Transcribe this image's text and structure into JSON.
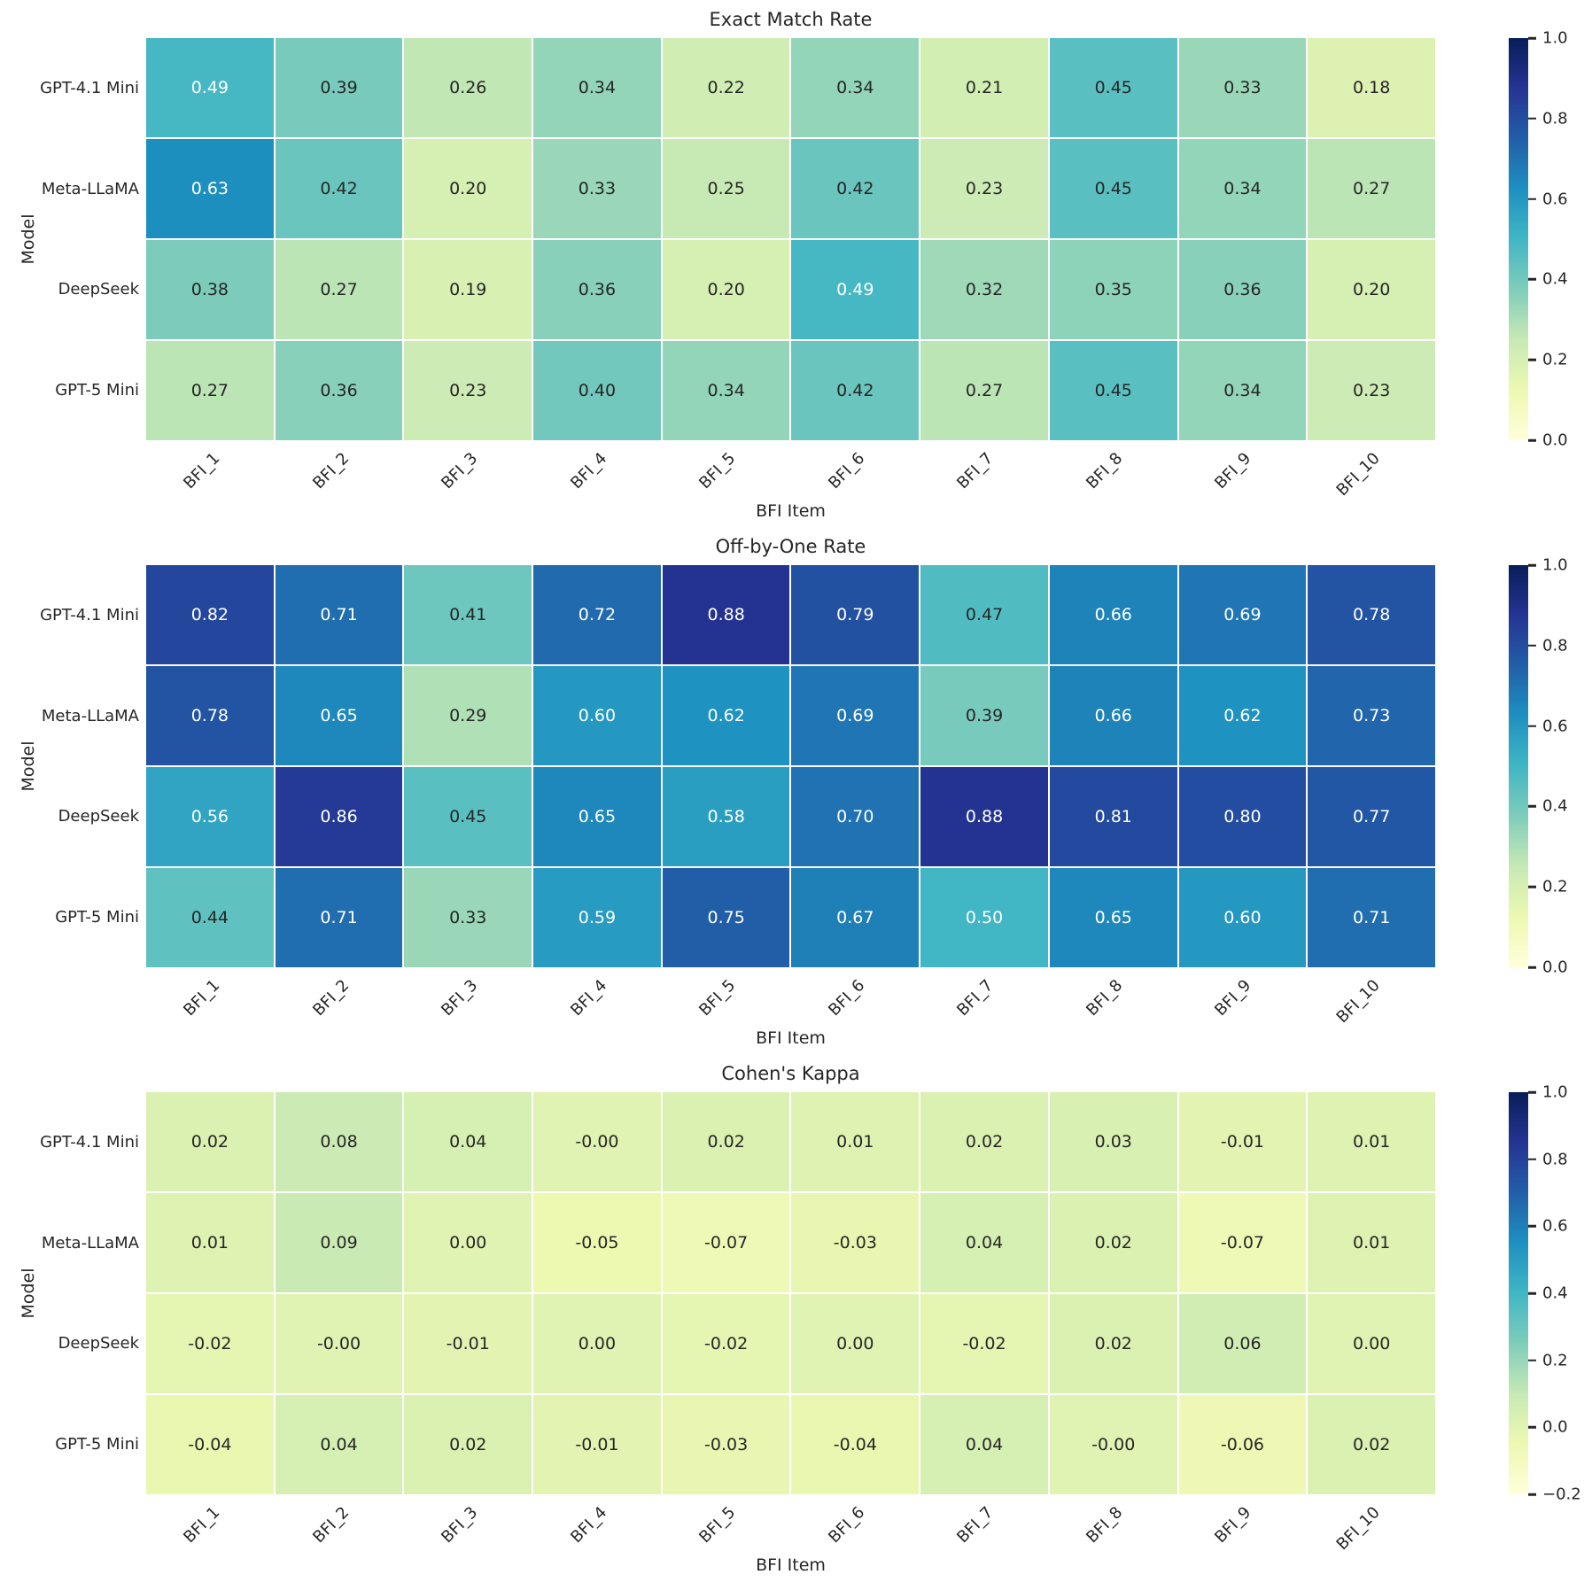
{
  "figure": {
    "background": "#ffffff",
    "text_color": "#262626"
  },
  "colormap": {
    "name": "YlGnBu",
    "stops": [
      [
        0.0,
        "#ffffd9"
      ],
      [
        0.125,
        "#edf8b1"
      ],
      [
        0.25,
        "#c7e9b4"
      ],
      [
        0.375,
        "#7fcdbb"
      ],
      [
        0.5,
        "#41b6c4"
      ],
      [
        0.625,
        "#1d91c0"
      ],
      [
        0.75,
        "#225ea8"
      ],
      [
        0.875,
        "#253494"
      ],
      [
        1.0,
        "#081d58"
      ]
    ]
  },
  "annotation_colors": {
    "dark": "#262626",
    "light": "#ffffff"
  },
  "chart_data": [
    {
      "type": "heatmap",
      "title": "Exact Match Rate",
      "xlabel": "BFI Item",
      "ylabel": "Model",
      "rows": [
        "GPT-4.1 Mini",
        "Meta-LLaMA",
        "DeepSeek",
        "GPT-5 Mini"
      ],
      "columns": [
        "BFI_1",
        "BFI_2",
        "BFI_3",
        "BFI_4",
        "BFI_5",
        "BFI_6",
        "BFI_7",
        "BFI_8",
        "BFI_9",
        "BFI_10"
      ],
      "vmin": 0.0,
      "vmax": 1.0,
      "grid_lines": true,
      "legend_position": "right-colorbar",
      "colorbar_ticks": [
        0.0,
        0.2,
        0.4,
        0.6,
        0.8,
        1.0
      ],
      "colorbar_tick_labels": [
        "0.0",
        "0.2",
        "0.4",
        "0.6",
        "0.8",
        "1.0"
      ],
      "values": [
        [
          "0.49",
          "0.39",
          "0.26",
          "0.34",
          "0.22",
          "0.34",
          "0.21",
          "0.45",
          "0.33",
          "0.18"
        ],
        [
          "0.63",
          "0.42",
          "0.20",
          "0.33",
          "0.25",
          "0.42",
          "0.23",
          "0.45",
          "0.34",
          "0.27"
        ],
        [
          "0.38",
          "0.27",
          "0.19",
          "0.36",
          "0.20",
          "0.49",
          "0.32",
          "0.35",
          "0.36",
          "0.20"
        ],
        [
          "0.27",
          "0.36",
          "0.23",
          "0.40",
          "0.34",
          "0.42",
          "0.27",
          "0.45",
          "0.34",
          "0.23"
        ]
      ]
    },
    {
      "type": "heatmap",
      "title": "Off-by-One Rate",
      "xlabel": "BFI Item",
      "ylabel": "Model",
      "rows": [
        "GPT-4.1 Mini",
        "Meta-LLaMA",
        "DeepSeek",
        "GPT-5 Mini"
      ],
      "columns": [
        "BFI_1",
        "BFI_2",
        "BFI_3",
        "BFI_4",
        "BFI_5",
        "BFI_6",
        "BFI_7",
        "BFI_8",
        "BFI_9",
        "BFI_10"
      ],
      "vmin": 0.0,
      "vmax": 1.0,
      "grid_lines": true,
      "legend_position": "right-colorbar",
      "colorbar_ticks": [
        0.0,
        0.2,
        0.4,
        0.6,
        0.8,
        1.0
      ],
      "colorbar_tick_labels": [
        "0.0",
        "0.2",
        "0.4",
        "0.6",
        "0.8",
        "1.0"
      ],
      "values": [
        [
          "0.82",
          "0.71",
          "0.41",
          "0.72",
          "0.88",
          "0.79",
          "0.47",
          "0.66",
          "0.69",
          "0.78"
        ],
        [
          "0.78",
          "0.65",
          "0.29",
          "0.60",
          "0.62",
          "0.69",
          "0.39",
          "0.66",
          "0.62",
          "0.73"
        ],
        [
          "0.56",
          "0.86",
          "0.45",
          "0.65",
          "0.58",
          "0.70",
          "0.88",
          "0.81",
          "0.80",
          "0.77"
        ],
        [
          "0.44",
          "0.71",
          "0.33",
          "0.59",
          "0.75",
          "0.67",
          "0.50",
          "0.65",
          "0.60",
          "0.71"
        ]
      ]
    },
    {
      "type": "heatmap",
      "title": "Cohen's Kappa",
      "xlabel": "BFI Item",
      "ylabel": "Model",
      "rows": [
        "GPT-4.1 Mini",
        "Meta-LLaMA",
        "DeepSeek",
        "GPT-5 Mini"
      ],
      "columns": [
        "BFI_1",
        "BFI_2",
        "BFI_3",
        "BFI_4",
        "BFI_5",
        "BFI_6",
        "BFI_7",
        "BFI_8",
        "BFI_9",
        "BFI_10"
      ],
      "vmin": -0.2,
      "vmax": 1.0,
      "grid_lines": true,
      "legend_position": "right-colorbar",
      "colorbar_ticks": [
        -0.2,
        0.0,
        0.2,
        0.4,
        0.6,
        0.8,
        1.0
      ],
      "colorbar_tick_labels": [
        "−0.2",
        "0.0",
        "0.2",
        "0.4",
        "0.6",
        "0.8",
        "1.0"
      ],
      "values": [
        [
          "0.02",
          "0.08",
          "0.04",
          "-0.00",
          "0.02",
          "0.01",
          "0.02",
          "0.03",
          "-0.01",
          "0.01"
        ],
        [
          "0.01",
          "0.09",
          "0.00",
          "-0.05",
          "-0.07",
          "-0.03",
          "0.04",
          "0.02",
          "-0.07",
          "0.01"
        ],
        [
          "-0.02",
          "-0.00",
          "-0.01",
          "0.00",
          "-0.02",
          "0.00",
          "-0.02",
          "0.02",
          "0.06",
          "0.00"
        ],
        [
          "-0.04",
          "0.04",
          "0.02",
          "-0.01",
          "-0.03",
          "-0.04",
          "0.04",
          "-0.00",
          "-0.06",
          "0.02"
        ]
      ]
    }
  ]
}
